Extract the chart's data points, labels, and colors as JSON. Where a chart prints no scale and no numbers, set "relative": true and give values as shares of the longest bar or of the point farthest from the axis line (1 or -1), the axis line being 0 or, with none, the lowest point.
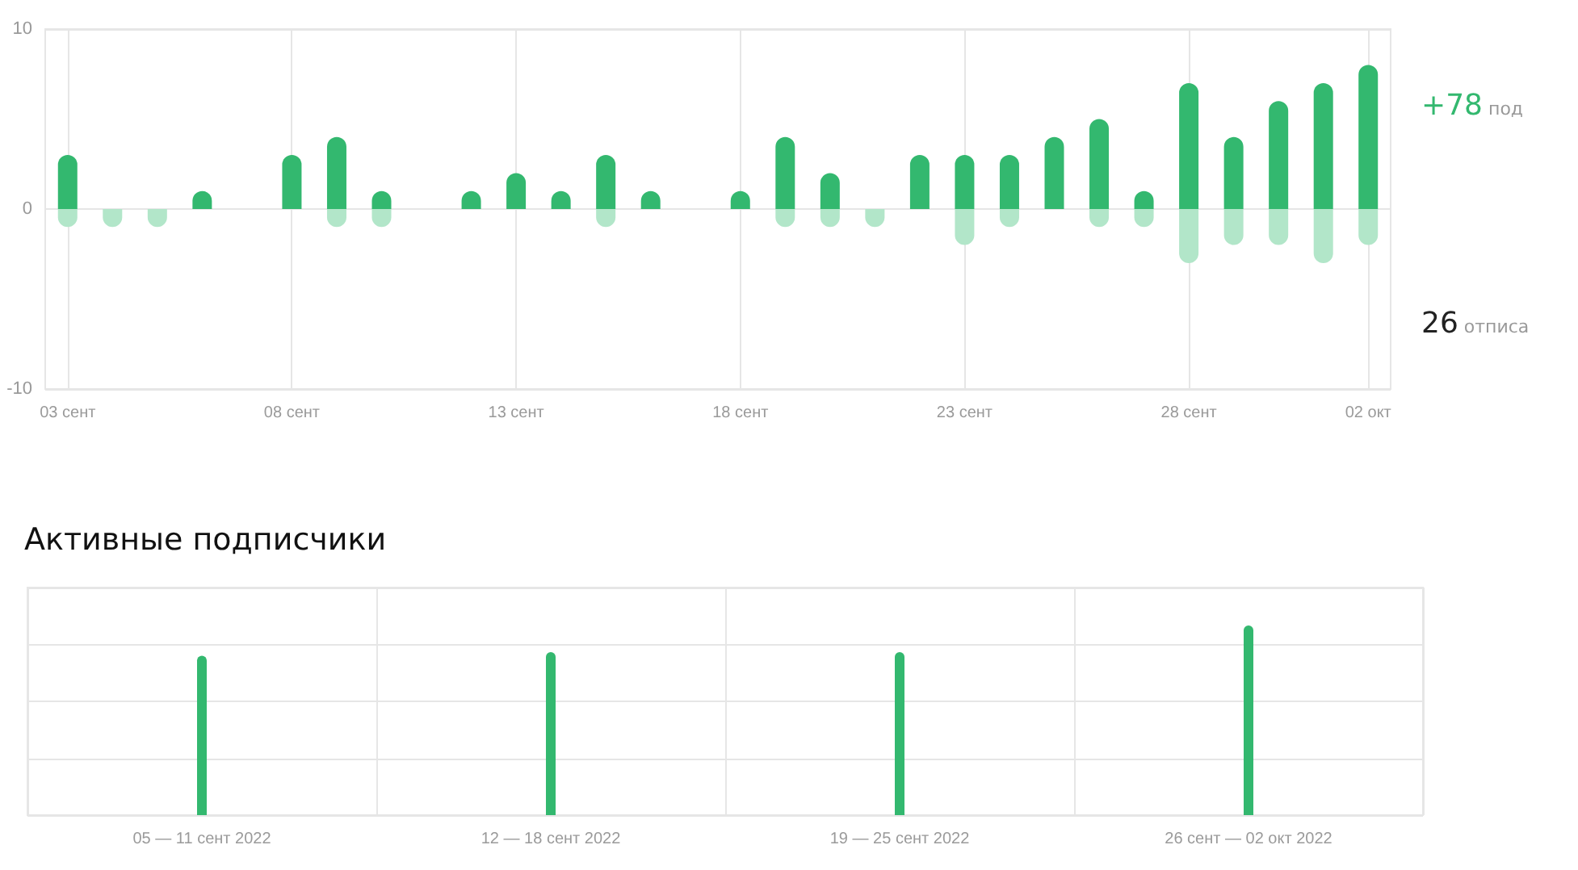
{
  "chart_data": [
    {
      "type": "bar",
      "categories": [
        "03 сент",
        null,
        null,
        null,
        null,
        "08 сент",
        null,
        null,
        null,
        null,
        "13 сент",
        null,
        null,
        null,
        null,
        "18 сент",
        null,
        null,
        null,
        null,
        "23 сент",
        null,
        null,
        null,
        null,
        "28 сент",
        null,
        null,
        null,
        "02 окт"
      ],
      "series": [
        {
          "color": "#33b86f",
          "values": [
            3,
            0,
            0,
            1,
            0,
            3,
            4,
            1,
            0,
            1,
            2,
            1,
            3,
            1,
            0,
            1,
            4,
            2,
            0,
            3,
            3,
            3,
            4,
            5,
            1,
            7,
            4,
            6,
            7,
            8
          ]
        },
        {
          "color": "#b2e6c9",
          "values": [
            -1,
            -1,
            -1,
            0,
            0,
            0,
            -1,
            -1,
            0,
            0,
            0,
            0,
            -1,
            0,
            0,
            0,
            -1,
            -1,
            -1,
            0,
            -2,
            -1,
            0,
            -1,
            -1,
            -3,
            -2,
            -2,
            -3,
            -2
          ]
        }
      ],
      "ylim": [
        -10,
        10
      ],
      "yticks": [
        -10,
        0,
        10
      ],
      "grid": true,
      "stacked": true,
      "annotations": [
        "+78 под",
        "26 отписа"
      ]
    },
    {
      "type": "bar",
      "title": "Активные подписчики",
      "categories": [
        "05 — 11 сент 2022",
        "12 — 18 сент 2022",
        "19 — 25 сент 2022",
        "26 сент — 02 окт 2022"
      ],
      "values": [
        0.84,
        0.86,
        0.86,
        1
      ],
      "color": "#33b86f",
      "relative": true,
      "grid": true
    }
  ]
}
